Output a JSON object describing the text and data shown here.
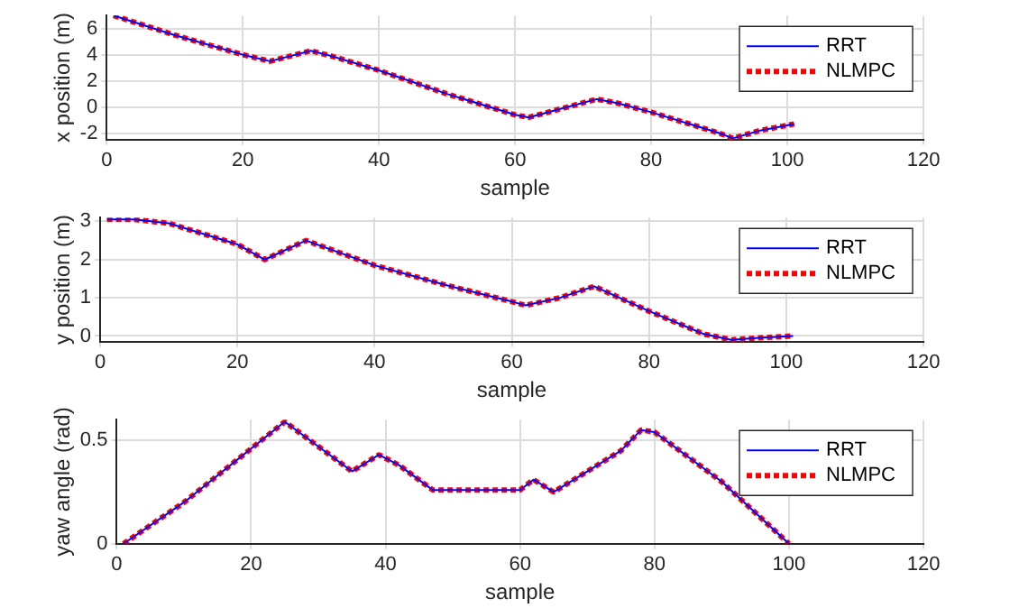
{
  "chart_data": [
    {
      "type": "line",
      "xlabel": "sample",
      "ylabel": "x position (m)",
      "xlim": [
        0,
        120
      ],
      "xticks": [
        0,
        20,
        40,
        60,
        80,
        100,
        120
      ],
      "ylim": [
        -2.5,
        7
      ],
      "yticks": [
        -2,
        0,
        2,
        4,
        6
      ],
      "grid": true,
      "legend": "top right",
      "marker": "none",
      "x": [
        1,
        10,
        20,
        24,
        27,
        30,
        33,
        40,
        50,
        60,
        62,
        67,
        72,
        75,
        80,
        90,
        92,
        96,
        101
      ],
      "series": [
        {
          "name": "RRT",
          "color": "#0000ff",
          "line_style": "solid",
          "values": [
            7,
            5.5,
            4.0,
            3.5,
            3.9,
            4.3,
            3.9,
            2.8,
            1.0,
            -0.6,
            -0.8,
            -0.1,
            0.6,
            0.3,
            -0.4,
            -2.0,
            -2.4,
            -1.8,
            -1.3
          ]
        },
        {
          "name": "NLMPC",
          "color": "#ff0000",
          "line_style": "dotted",
          "values": [
            7,
            5.5,
            4.0,
            3.5,
            3.9,
            4.3,
            3.9,
            2.8,
            1.0,
            -0.6,
            -0.8,
            -0.1,
            0.6,
            0.3,
            -0.4,
            -2.0,
            -2.4,
            -1.8,
            -1.3
          ]
        }
      ]
    },
    {
      "type": "line",
      "xlabel": "sample",
      "ylabel": "y position (m)",
      "xlim": [
        0,
        120
      ],
      "xticks": [
        0,
        20,
        40,
        60,
        80,
        100,
        120
      ],
      "ylim": [
        -0.15,
        3.1
      ],
      "yticks": [
        0,
        1,
        2,
        3
      ],
      "grid": true,
      "legend": "top right",
      "marker": "none",
      "x": [
        1,
        5,
        10,
        20,
        24,
        30,
        40,
        50,
        60,
        62,
        67,
        72,
        80,
        88,
        92,
        96,
        101
      ],
      "series": [
        {
          "name": "RRT",
          "color": "#0000ff",
          "line_style": "solid",
          "values": [
            3.05,
            3.05,
            2.95,
            2.4,
            2.0,
            2.5,
            1.85,
            1.35,
            0.9,
            0.8,
            1.0,
            1.3,
            0.65,
            0.05,
            -0.1,
            -0.05,
            0.0
          ]
        },
        {
          "name": "NLMPC",
          "color": "#ff0000",
          "line_style": "dotted",
          "values": [
            3.05,
            3.05,
            2.95,
            2.4,
            2.0,
            2.5,
            1.85,
            1.35,
            0.9,
            0.8,
            1.0,
            1.3,
            0.65,
            0.05,
            -0.1,
            -0.05,
            0.0
          ]
        }
      ]
    },
    {
      "type": "line",
      "xlabel": "sample",
      "ylabel": "yaw angle (rad)",
      "xlim": [
        0,
        120
      ],
      "xticks": [
        0,
        20,
        40,
        60,
        80,
        100,
        120
      ],
      "ylim": [
        0,
        0.6
      ],
      "yticks": [
        0,
        0.5
      ],
      "grid": true,
      "legend": "top right",
      "marker": "none",
      "x": [
        1,
        10,
        20,
        25,
        30,
        35,
        39,
        42,
        47,
        60,
        62,
        65,
        70,
        75,
        78,
        80,
        90,
        100
      ],
      "series": [
        {
          "name": "RRT",
          "color": "#0000ff",
          "line_style": "solid",
          "values": [
            0,
            0.2,
            0.46,
            0.59,
            0.47,
            0.35,
            0.43,
            0.38,
            0.26,
            0.26,
            0.31,
            0.25,
            0.35,
            0.45,
            0.55,
            0.54,
            0.3,
            0
          ]
        },
        {
          "name": "NLMPC",
          "color": "#ff0000",
          "line_style": "dotted",
          "values": [
            0,
            0.2,
            0.46,
            0.59,
            0.47,
            0.35,
            0.43,
            0.38,
            0.26,
            0.26,
            0.31,
            0.25,
            0.35,
            0.45,
            0.55,
            0.54,
            0.3,
            0
          ]
        }
      ]
    }
  ]
}
